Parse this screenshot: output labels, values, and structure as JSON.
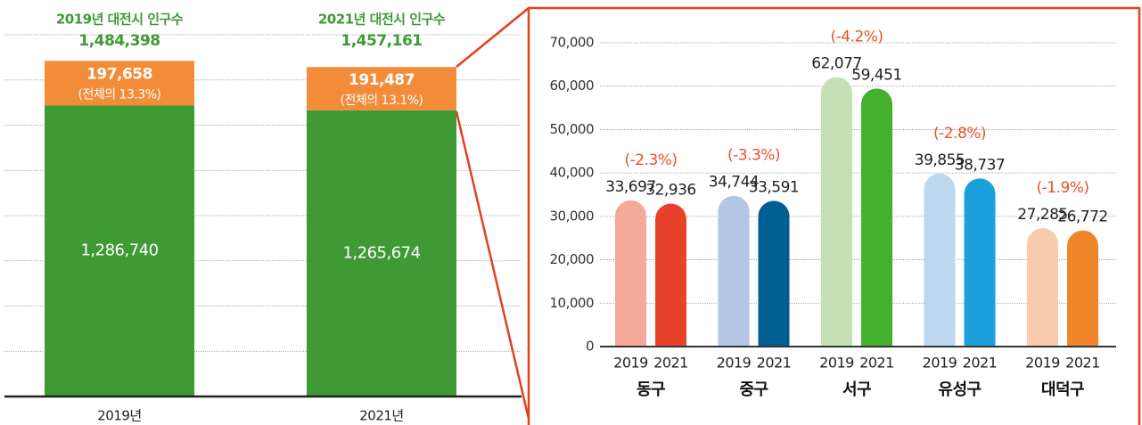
{
  "chart_data": [
    {
      "type": "stacked-bar",
      "categories": [
        "2019년",
        "2021년"
      ],
      "bar_titles": [
        "2019년 대전시 인구수",
        "2021년 대전시 인구수"
      ],
      "totals": [
        1484398,
        1457161
      ],
      "total_labels": [
        "1,484,398",
        "1,457,161"
      ],
      "series": [
        {
          "color": "#3f9a35",
          "values": [
            1286740,
            1265674
          ],
          "value_labels": [
            "1,286,740",
            "1,265,674"
          ]
        },
        {
          "color": "#f28c38",
          "values": [
            197658,
            191487
          ],
          "value_labels": [
            "197,658",
            "191,487"
          ],
          "shares": [
            13.3,
            13.1
          ],
          "share_labels": [
            "(전체의 13.3%)",
            "(전체의 13.1%)"
          ]
        }
      ],
      "ylim": [
        0,
        1600000
      ],
      "yticks": [
        0,
        200000,
        400000,
        600000,
        800000,
        1000000,
        1200000,
        1400000,
        1600000
      ],
      "grid": true
    },
    {
      "type": "grouped-bar",
      "categories": [
        "동구",
        "중구",
        "서구",
        "유성구",
        "대덕구"
      ],
      "series": [
        {
          "name": "2019",
          "colors": [
            "#f5a99a",
            "#b3c6e6",
            "#c5e0b4",
            "#bdd7ee",
            "#f8cbad"
          ],
          "values": [
            33697,
            34744,
            62077,
            39855,
            27285
          ],
          "value_labels": [
            "33,697",
            "34,744",
            "62,077",
            "39,855",
            "27,285"
          ]
        },
        {
          "name": "2021",
          "colors": [
            "#e8432a",
            "#005e93",
            "#44b02d",
            "#1ca0dc",
            "#f0862a"
          ],
          "values": [
            32936,
            33591,
            59451,
            38737,
            26772
          ],
          "value_labels": [
            "32,936",
            "33,591",
            "59,451",
            "38,737",
            "26,772"
          ]
        }
      ],
      "changes": [
        -2.3,
        -3.3,
        -4.2,
        -2.8,
        -1.9
      ],
      "change_labels": [
        "(-2.3%)",
        "(-3.3%)",
        "(-4.2%)",
        "(-2.8%)",
        "(-1.9%)"
      ],
      "ylim": [
        0,
        70000
      ],
      "yticks": [
        0,
        {
          "value": 10000,
          "label": "10,000"
        },
        {
          "value": 20000,
          "label": "20,000"
        },
        {
          "value": 30000,
          "label": "30,000"
        },
        {
          "value": 40000,
          "label": "40,000"
        },
        {
          "value": 50000,
          "label": "50,000"
        },
        {
          "value": 60000,
          "label": "60,000"
        },
        {
          "value": 70000,
          "label": "70,000"
        }
      ],
      "grid": true
    }
  ]
}
